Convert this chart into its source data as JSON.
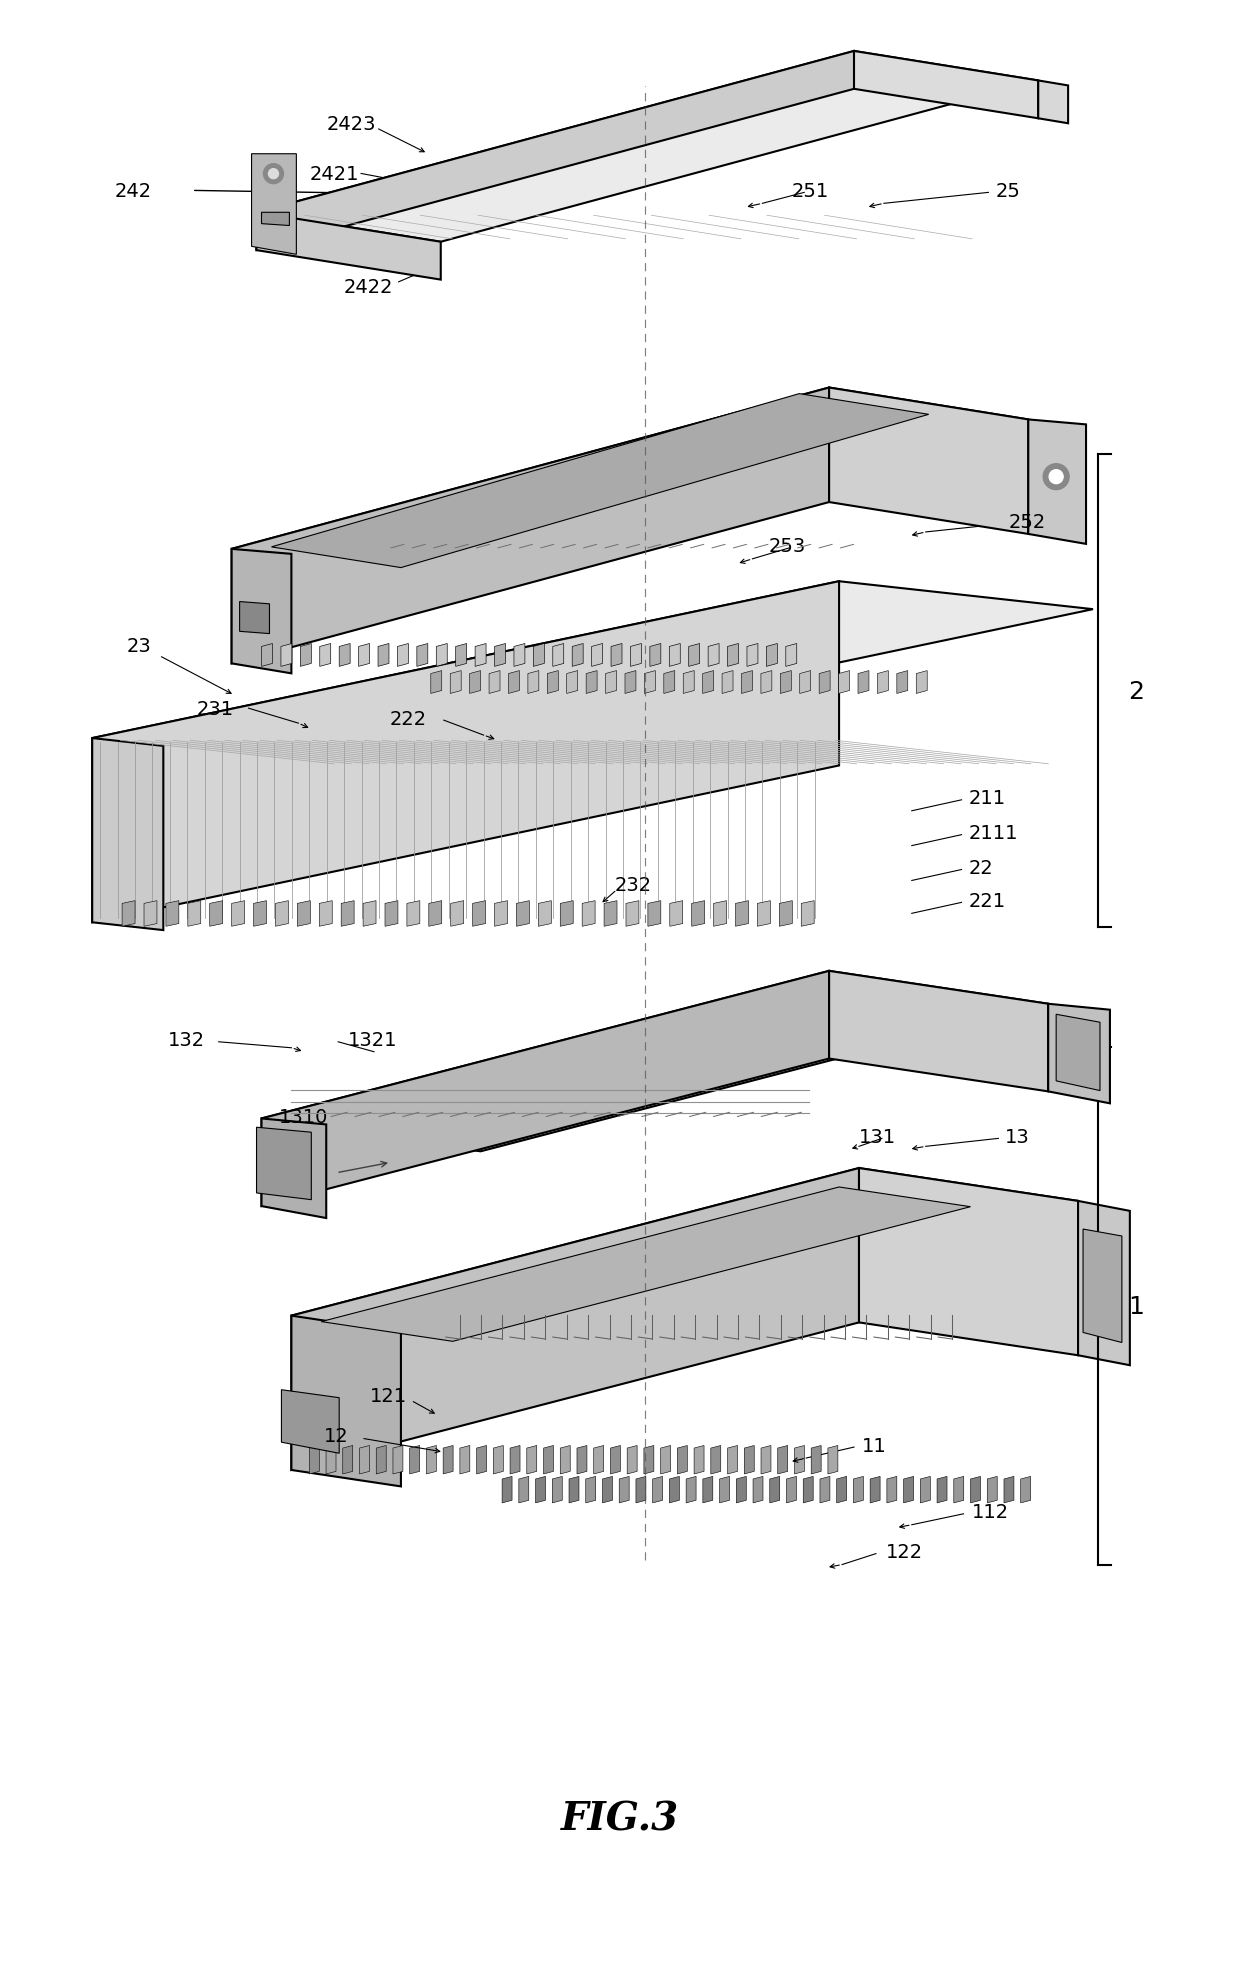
{
  "title": "FIG.3",
  "bg_color": "#ffffff",
  "line_color": "#000000",
  "fig_width": 12.4,
  "fig_height": 19.83,
  "title_fontsize": 28,
  "label_fontsize": 14
}
